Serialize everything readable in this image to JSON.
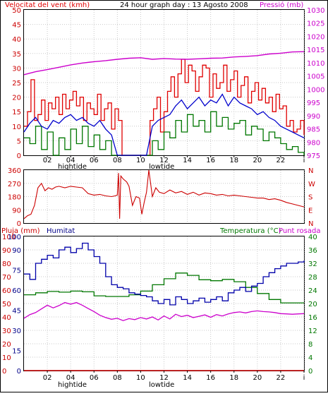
{
  "header": {
    "wind_title": "Velocitat del vent (kmh)",
    "graph_title": "24 hour graph day : 13 Agosto 2008",
    "pressure_title": "Pressió (mb)"
  },
  "bottom_headers": {
    "rain_title": "Pluja (mm)",
    "humidity_title": "Humitat",
    "temp_title": "Temperatura (°C)",
    "dew_title": "Punt rosada"
  },
  "x_axis": {
    "ticks": [
      "02",
      "04",
      "06",
      "08",
      "10",
      "12",
      "14",
      "16",
      "18",
      "20",
      "22",
      "i"
    ],
    "tide_high": "hightide",
    "tide_low": "lowtide"
  },
  "colors": {
    "wind_gust": "#e00000",
    "wind_avg": "#0000cc",
    "wind_min": "#007700",
    "pressure": "#cc00cc",
    "direction": "#cc0000",
    "humidity": "#0000aa",
    "temperature": "#007700",
    "dewpoint": "#cc00cc",
    "rain": "#cc0000",
    "left_axis": "#cc0000",
    "right_axis_top": "#cc00cc",
    "right_axis_bottom": "#007700",
    "humidity_axis": "#000088",
    "grid": "#c9c9c9"
  },
  "chart_data": [
    {
      "id": "wind_pressure",
      "type": "line",
      "x_unit": "hour",
      "xlim": [
        0,
        24
      ],
      "y_left": {
        "label": "Velocitat del vent (kmh)",
        "lim": [
          0,
          50
        ],
        "ticks": [
          0,
          5,
          10,
          15,
          20,
          25,
          30,
          35,
          40,
          45,
          50
        ]
      },
      "y_right": {
        "label": "Pressió (mb)",
        "lim": [
          975,
          1030
        ],
        "ticks": [
          975,
          980,
          985,
          990,
          995,
          1000,
          1005,
          1010,
          1015,
          1020,
          1025,
          1030
        ]
      },
      "series": [
        {
          "key": "gust",
          "axis": "left",
          "x": [
            0,
            0.3,
            0.6,
            0.9,
            1.2,
            1.5,
            1.8,
            2.1,
            2.4,
            2.7,
            3,
            3.3,
            3.6,
            3.9,
            4.2,
            4.5,
            4.8,
            5.1,
            5.4,
            5.7,
            6,
            6.3,
            6.6,
            6.9,
            7.2,
            7.5,
            7.8,
            8.1,
            8.4,
            8.7,
            9,
            9.3,
            9.6,
            9.9,
            10.2,
            10.5,
            10.8,
            11.1,
            11.4,
            11.7,
            12,
            12.3,
            12.6,
            12.9,
            13.2,
            13.5,
            13.8,
            14.1,
            14.4,
            14.7,
            15,
            15.3,
            15.6,
            15.9,
            16.2,
            16.5,
            16.8,
            17.1,
            17.4,
            17.7,
            18,
            18.3,
            18.6,
            18.9,
            19.2,
            19.5,
            19.8,
            20.1,
            20.4,
            20.7,
            21,
            21.3,
            21.6,
            21.9,
            22.2,
            22.5,
            22.8,
            23.1,
            23.4,
            23.7,
            24
          ],
          "y": [
            10,
            15,
            26,
            12,
            14,
            19,
            12,
            18,
            16,
            20,
            14,
            21,
            16,
            19,
            22,
            17,
            20,
            12,
            18,
            16,
            14,
            21,
            12,
            16,
            18,
            9,
            16,
            12,
            0,
            0,
            0,
            0,
            0,
            0,
            0,
            0,
            12,
            16,
            20,
            8,
            15,
            22,
            27,
            20,
            28,
            33,
            25,
            31,
            29,
            22,
            27,
            31,
            30,
            20,
            28,
            23,
            25,
            31,
            22,
            26,
            29,
            20,
            24,
            27,
            18,
            22,
            25,
            19,
            23,
            18,
            20,
            15,
            21,
            16,
            17,
            10,
            12,
            8,
            9,
            12,
            7
          ],
          "step": true
        },
        {
          "key": "avg",
          "axis": "left",
          "x": [
            0,
            0.5,
            1,
            1.5,
            2,
            2.5,
            3,
            3.5,
            4,
            4.5,
            5,
            5.5,
            6,
            6.5,
            7,
            7.5,
            8,
            8.5,
            9,
            9.5,
            10,
            10.5,
            11,
            11.5,
            12,
            12.5,
            13,
            13.5,
            14,
            14.5,
            15,
            15.5,
            16,
            16.5,
            17,
            17.5,
            18,
            18.5,
            19,
            19.5,
            20,
            20.5,
            21,
            21.5,
            22,
            22.5,
            23,
            23.5,
            24
          ],
          "y": [
            8,
            11,
            13,
            10,
            9,
            12,
            11,
            13,
            14,
            12,
            13,
            11,
            10,
            12,
            9,
            7,
            0,
            0,
            0,
            0,
            0,
            0,
            10,
            12,
            13,
            14,
            17,
            19,
            16,
            18,
            20,
            17,
            19,
            18,
            21,
            17,
            20,
            18,
            17,
            16,
            14,
            15,
            13,
            12,
            10,
            9,
            8,
            7,
            6
          ]
        },
        {
          "key": "min",
          "axis": "left",
          "x": [
            0,
            0.5,
            1,
            1.5,
            2,
            2.5,
            3,
            3.5,
            4,
            4.5,
            5,
            5.5,
            6,
            6.5,
            7,
            7.5,
            8,
            8.5,
            9,
            9.5,
            10,
            10.5,
            11,
            11.5,
            12,
            12.5,
            13,
            13.5,
            14,
            14.5,
            15,
            15.5,
            16,
            16.5,
            17,
            17.5,
            18,
            18.5,
            19,
            19.5,
            20,
            20.5,
            21,
            21.5,
            22,
            22.5,
            23,
            23.5,
            24
          ],
          "y": [
            6,
            4,
            10,
            2,
            8,
            0,
            6,
            2,
            9,
            4,
            10,
            3,
            7,
            2,
            5,
            0,
            0,
            0,
            0,
            0,
            0,
            0,
            5,
            2,
            8,
            6,
            12,
            8,
            14,
            10,
            12,
            8,
            15,
            10,
            13,
            9,
            11,
            12,
            7,
            10,
            9,
            5,
            8,
            6,
            4,
            2,
            3,
            1,
            0
          ],
          "step": true
        },
        {
          "key": "pressure",
          "axis": "right",
          "x": [
            0,
            1,
            2,
            3,
            4,
            5,
            6,
            7,
            8,
            9,
            10,
            11,
            12,
            13,
            14,
            15,
            16,
            17,
            18,
            19,
            20,
            21,
            22,
            23,
            24
          ],
          "y": [
            1005.5,
            1006.6,
            1007.4,
            1008.3,
            1009.2,
            1009.9,
            1010.4,
            1010.8,
            1011.3,
            1011.7,
            1011.9,
            1011.3,
            1011.6,
            1011.4,
            1011.3,
            1011.5,
            1011.7,
            1011.8,
            1012.2,
            1012.4,
            1012.7,
            1013.3,
            1013.6,
            1014.1,
            1014.2
          ]
        }
      ]
    },
    {
      "id": "wind_direction",
      "type": "line",
      "xlim": [
        0,
        24
      ],
      "y_left": {
        "lim": [
          0,
          360
        ],
        "ticks": [
          0,
          90,
          180,
          270,
          360
        ]
      },
      "y_right": {
        "compass": [
          "N",
          "W",
          "S",
          "E",
          "N"
        ]
      },
      "series": [
        {
          "key": "direction",
          "axis": "left",
          "x": [
            0,
            0.3,
            0.6,
            0.9,
            1.2,
            1.5,
            1.8,
            2.1,
            2.4,
            2.7,
            3,
            3.5,
            4,
            4.5,
            5,
            5.5,
            6,
            6.5,
            7,
            7.5,
            7.8,
            8,
            8.1,
            8.2,
            8.3,
            8.5,
            8.8,
            9,
            9.3,
            9.6,
            9.9,
            10.1,
            10.3,
            10.5,
            10.7,
            11,
            11.3,
            11.6,
            12,
            12.5,
            13,
            13.5,
            14,
            14.5,
            15,
            15.5,
            16,
            16.5,
            17,
            17.5,
            18,
            18.5,
            19,
            19.5,
            20,
            20.5,
            21,
            21.5,
            22,
            22.5,
            23,
            23.5,
            24
          ],
          "y": [
            30,
            50,
            60,
            120,
            240,
            270,
            220,
            240,
            230,
            245,
            250,
            240,
            250,
            245,
            240,
            200,
            190,
            195,
            185,
            180,
            185,
            190,
            340,
            30,
            320,
            300,
            280,
            250,
            120,
            180,
            170,
            60,
            140,
            210,
            360,
            180,
            240,
            210,
            200,
            225,
            205,
            215,
            195,
            210,
            190,
            205,
            200,
            190,
            195,
            185,
            190,
            185,
            180,
            175,
            170,
            170,
            160,
            165,
            155,
            140,
            130,
            120,
            110
          ]
        }
      ]
    },
    {
      "id": "humidity_temperature",
      "type": "line",
      "xlim": [
        0,
        24
      ],
      "y_left_rain": {
        "label": "Pluja (mm)",
        "lim": [
          0,
          100
        ],
        "ticks": [
          0,
          10,
          20,
          30,
          40,
          50,
          60,
          70,
          80,
          90,
          100
        ]
      },
      "y_left_humidity": {
        "label": "Humitat",
        "lim": [
          0,
          100
        ],
        "ticks": [
          0,
          15,
          30,
          45,
          60,
          75,
          90,
          100
        ]
      },
      "y_right": {
        "label": "Temperatura (°C) / Punt rosada",
        "lim": [
          0,
          40
        ],
        "ticks": [
          0,
          4,
          8,
          12,
          16,
          20,
          24,
          28,
          32,
          36,
          40
        ]
      },
      "series": [
        {
          "key": "humidity",
          "axis": "humidity",
          "x": [
            0,
            0.5,
            1,
            1.5,
            2,
            2.5,
            3,
            3.5,
            4,
            4.5,
            5,
            5.5,
            6,
            6.5,
            7,
            7.5,
            8,
            8.5,
            9,
            9.5,
            10,
            10.5,
            11,
            11.5,
            12,
            12.5,
            13,
            13.5,
            14,
            14.5,
            15,
            15.5,
            16,
            16.5,
            17,
            17.5,
            18,
            18.5,
            19,
            19.5,
            20,
            20.5,
            21,
            21.5,
            22,
            22.5,
            23,
            23.5,
            24
          ],
          "y": [
            72,
            68,
            80,
            83,
            86,
            84,
            90,
            92,
            88,
            91,
            95,
            90,
            85,
            80,
            70,
            64,
            62,
            61,
            58,
            57,
            56,
            55,
            52,
            50,
            53,
            49,
            55,
            53,
            50,
            52,
            54,
            51,
            53,
            55,
            52,
            58,
            60,
            62,
            59,
            63,
            65,
            70,
            73,
            76,
            78,
            80,
            80,
            81,
            82
          ],
          "step": true
        },
        {
          "key": "temperature",
          "axis": "right",
          "x": [
            0,
            1,
            2,
            3,
            4,
            5,
            6,
            7,
            8,
            9,
            10,
            11,
            12,
            13,
            14,
            15,
            16,
            17,
            18,
            19,
            20,
            21,
            22,
            23,
            24
          ],
          "y": [
            22.6,
            23.2,
            23.6,
            23.4,
            23.7,
            23.5,
            22.3,
            22.1,
            22.1,
            22.6,
            23.7,
            25.6,
            27.4,
            29.1,
            28.4,
            27.1,
            26.8,
            27.2,
            26.5,
            24.8,
            23.0,
            21.2,
            20.2,
            20.2,
            20.2
          ],
          "step": true
        },
        {
          "key": "dewpoint",
          "axis": "right",
          "x": [
            0,
            0.5,
            1,
            1.5,
            2,
            2.5,
            3,
            3.5,
            4,
            4.5,
            5,
            5.5,
            6,
            6.5,
            7,
            7.5,
            8,
            8.5,
            9,
            9.5,
            10,
            10.5,
            11,
            11.5,
            12,
            12.5,
            13,
            13.5,
            14,
            14.5,
            15,
            15.5,
            16,
            16.5,
            17,
            17.5,
            18,
            18.5,
            19,
            19.5,
            20,
            20.5,
            21,
            21.5,
            22,
            22.5,
            23,
            23.5,
            24
          ],
          "y": [
            15.6,
            16.7,
            17.3,
            18.4,
            19.5,
            18.7,
            19.4,
            20.3,
            19.8,
            20.3,
            19.5,
            18.5,
            17.6,
            16.5,
            15.8,
            15.3,
            15.6,
            14.9,
            15.5,
            15.2,
            15.8,
            15.4,
            16.0,
            15.1,
            16.3,
            15.4,
            16.8,
            16.1,
            16.5,
            15.8,
            16.2,
            16.6,
            15.9,
            16.7,
            16.3,
            16.9,
            17.3,
            17.5,
            17.2,
            17.6,
            17.8,
            17.6,
            17.5,
            17.3,
            17.0,
            16.9,
            16.8,
            16.9,
            17.0
          ]
        },
        {
          "key": "rain",
          "axis": "rain",
          "x": [
            0,
            24
          ],
          "y": [
            0,
            0
          ]
        }
      ]
    }
  ]
}
